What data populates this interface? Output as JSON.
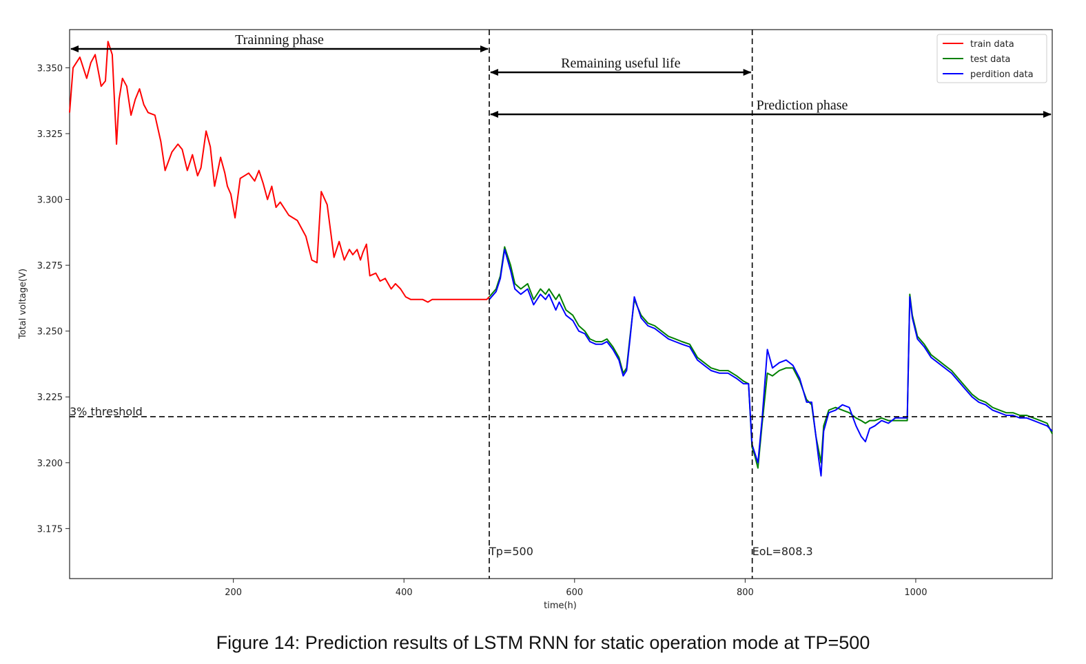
{
  "caption": "Figure 14: Prediction results of LSTM RNN for static operation mode at TP=500",
  "chart_data": {
    "type": "line",
    "title": "",
    "xlabel": "time(h)",
    "ylabel": "Total voltage(V)",
    "xlim": [
      8,
      1160
    ],
    "ylim": [
      3.156,
      3.3645
    ],
    "xticks": [
      200,
      400,
      600,
      800,
      1000
    ],
    "xtick_labels": [
      "200",
      "400",
      "600",
      "800",
      "1000"
    ],
    "yticks": [
      3.175,
      3.2,
      3.225,
      3.25,
      3.275,
      3.3,
      3.325,
      3.35
    ],
    "ytick_labels": [
      "3.175",
      "3.200",
      "3.225",
      "3.250",
      "3.275",
      "3.300",
      "3.325",
      "3.350"
    ],
    "grid": false,
    "legend_position": "top-right",
    "series": [
      {
        "name": "train data",
        "color": "#ff0000",
        "x": [
          8,
          12,
          20,
          28,
          33,
          38,
          45,
          50,
          53,
          58,
          63,
          66,
          70,
          75,
          80,
          85,
          90,
          95,
          100,
          108,
          115,
          120,
          128,
          135,
          140,
          146,
          152,
          158,
          162,
          168,
          173,
          178,
          185,
          190,
          193,
          197,
          202,
          208,
          213,
          218,
          225,
          230,
          235,
          240,
          245,
          250,
          255,
          265,
          275,
          285,
          292,
          298,
          303,
          310,
          318,
          324,
          330,
          336,
          340,
          345,
          349,
          352,
          356,
          360,
          367,
          372,
          378,
          385,
          390,
          396,
          402,
          408,
          415,
          422,
          428,
          433,
          440,
          447,
          453,
          460,
          467,
          473,
          480,
          486,
          492,
          497,
          500
        ],
        "values": [
          3.333,
          3.35,
          3.354,
          3.346,
          3.352,
          3.355,
          3.343,
          3.345,
          3.36,
          3.355,
          3.321,
          3.338,
          3.346,
          3.343,
          3.332,
          3.338,
          3.342,
          3.336,
          3.333,
          3.332,
          3.322,
          3.311,
          3.318,
          3.321,
          3.319,
          3.311,
          3.317,
          3.309,
          3.312,
          3.326,
          3.32,
          3.305,
          3.316,
          3.31,
          3.305,
          3.302,
          3.293,
          3.308,
          3.309,
          3.31,
          3.307,
          3.311,
          3.306,
          3.3,
          3.305,
          3.297,
          3.299,
          3.294,
          3.292,
          3.286,
          3.277,
          3.276,
          3.303,
          3.298,
          3.278,
          3.284,
          3.277,
          3.281,
          3.279,
          3.281,
          3.277,
          3.28,
          3.283,
          3.271,
          3.272,
          3.269,
          3.27,
          3.266,
          3.268,
          3.266,
          3.263,
          3.262,
          3.262,
          3.262,
          3.261,
          3.262,
          3.262,
          3.262,
          3.262,
          3.262,
          3.262,
          3.262,
          3.262,
          3.262,
          3.262,
          3.262,
          3.263
        ]
      },
      {
        "name": "test data",
        "color": "#008000",
        "x": [
          500,
          508,
          513,
          518,
          525,
          530,
          537,
          545,
          552,
          560,
          566,
          570,
          578,
          582,
          590,
          598,
          605,
          612,
          618,
          625,
          632,
          638,
          645,
          652,
          657,
          661,
          665,
          670,
          678,
          686,
          694,
          702,
          710,
          718,
          726,
          735,
          744,
          752,
          760,
          770,
          780,
          790,
          798,
          804,
          808,
          811,
          815,
          820,
          826,
          832,
          840,
          848,
          856,
          864,
          872,
          878,
          883,
          886,
          889,
          892,
          898,
          906,
          914,
          922,
          930,
          936,
          941,
          946,
          952,
          960,
          968,
          976,
          984,
          990,
          993,
          996,
          1002,
          1010,
          1018,
          1026,
          1034,
          1042,
          1050,
          1058,
          1066,
          1074,
          1082,
          1090,
          1098,
          1106,
          1114,
          1122,
          1130,
          1138,
          1146,
          1154,
          1160
        ],
        "values": [
          3.263,
          3.266,
          3.271,
          3.282,
          3.275,
          3.268,
          3.266,
          3.268,
          3.262,
          3.266,
          3.264,
          3.266,
          3.262,
          3.264,
          3.258,
          3.256,
          3.252,
          3.25,
          3.247,
          3.246,
          3.246,
          3.247,
          3.244,
          3.24,
          3.234,
          3.236,
          3.248,
          3.262,
          3.256,
          3.253,
          3.252,
          3.25,
          3.248,
          3.247,
          3.246,
          3.245,
          3.24,
          3.238,
          3.236,
          3.235,
          3.235,
          3.233,
          3.231,
          3.23,
          3.206,
          3.203,
          3.198,
          3.215,
          3.234,
          3.233,
          3.235,
          3.236,
          3.236,
          3.231,
          3.224,
          3.222,
          3.21,
          3.205,
          3.2,
          3.214,
          3.22,
          3.221,
          3.22,
          3.219,
          3.217,
          3.216,
          3.215,
          3.216,
          3.216,
          3.217,
          3.216,
          3.216,
          3.216,
          3.216,
          3.264,
          3.256,
          3.248,
          3.245,
          3.241,
          3.239,
          3.237,
          3.235,
          3.232,
          3.229,
          3.226,
          3.224,
          3.223,
          3.221,
          3.22,
          3.219,
          3.219,
          3.218,
          3.218,
          3.217,
          3.216,
          3.215,
          3.211
        ]
      },
      {
        "name": "perdition data",
        "color": "#0000ff",
        "x": [
          500,
          508,
          513,
          518,
          525,
          530,
          537,
          545,
          552,
          560,
          566,
          570,
          578,
          582,
          590,
          598,
          605,
          612,
          618,
          625,
          632,
          638,
          645,
          652,
          657,
          661,
          665,
          670,
          678,
          686,
          694,
          702,
          710,
          718,
          726,
          735,
          744,
          752,
          760,
          770,
          780,
          790,
          798,
          804,
          808,
          811,
          815,
          820,
          826,
          832,
          840,
          848,
          856,
          864,
          872,
          878,
          883,
          886,
          889,
          892,
          898,
          906,
          914,
          922,
          930,
          936,
          941,
          946,
          952,
          960,
          968,
          976,
          984,
          990,
          993,
          996,
          1002,
          1010,
          1018,
          1026,
          1034,
          1042,
          1050,
          1058,
          1066,
          1074,
          1082,
          1090,
          1098,
          1106,
          1114,
          1122,
          1130,
          1138,
          1146,
          1154,
          1160
        ],
        "values": [
          3.262,
          3.265,
          3.27,
          3.281,
          3.273,
          3.266,
          3.264,
          3.266,
          3.26,
          3.264,
          3.262,
          3.264,
          3.258,
          3.261,
          3.256,
          3.254,
          3.25,
          3.249,
          3.246,
          3.245,
          3.245,
          3.246,
          3.243,
          3.239,
          3.233,
          3.235,
          3.247,
          3.263,
          3.255,
          3.252,
          3.251,
          3.249,
          3.247,
          3.246,
          3.245,
          3.244,
          3.239,
          3.237,
          3.235,
          3.234,
          3.234,
          3.232,
          3.23,
          3.23,
          3.207,
          3.204,
          3.2,
          3.217,
          3.243,
          3.236,
          3.238,
          3.239,
          3.237,
          3.232,
          3.223,
          3.223,
          3.21,
          3.202,
          3.195,
          3.212,
          3.219,
          3.22,
          3.222,
          3.221,
          3.214,
          3.21,
          3.208,
          3.213,
          3.214,
          3.216,
          3.215,
          3.217,
          3.217,
          3.217,
          3.263,
          3.255,
          3.247,
          3.244,
          3.24,
          3.238,
          3.236,
          3.234,
          3.231,
          3.228,
          3.225,
          3.223,
          3.222,
          3.22,
          3.219,
          3.218,
          3.218,
          3.217,
          3.217,
          3.216,
          3.215,
          3.214,
          3.212
        ]
      }
    ],
    "threshold": {
      "y": 3.2175,
      "label": "3% threshold"
    },
    "vlines": [
      {
        "x": 500,
        "label": "Tp=500"
      },
      {
        "x": 808.3,
        "label": "EoL=808.3"
      }
    ],
    "spans": [
      {
        "x0": 8,
        "x1": 500,
        "label": "Trainning phase"
      },
      {
        "x0": 500,
        "x1": 808.3,
        "label": "Remaining useful life"
      },
      {
        "x0": 500,
        "x1": 1160,
        "label": "Prediction phase"
      }
    ]
  }
}
